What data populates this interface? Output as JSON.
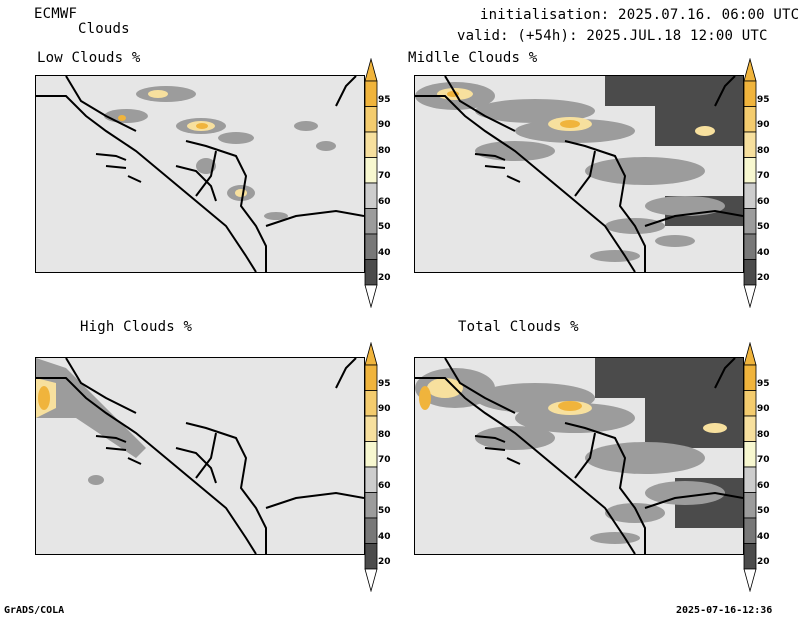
{
  "header": {
    "model": "ECMWF",
    "product": "Clouds",
    "initialisation": "initialisation: 2025.07.16. 06:00 UTC",
    "valid": "valid: (+54h): 2025.JUL.18 12:00 UTC"
  },
  "panels": [
    {
      "title": "Low Clouds %"
    },
    {
      "title": "Midlle Clouds %"
    },
    {
      "title": "High Clouds %"
    },
    {
      "title": "Total Clouds %"
    }
  ],
  "colorbar": {
    "ticks": [
      "95",
      "90",
      "80",
      "70",
      "60",
      "50",
      "40",
      "20"
    ],
    "colors": [
      "#f0b43c",
      "#f4cc6e",
      "#f7e09e",
      "#f8f8d0",
      "#cdcdcd",
      "#9c9c9c",
      "#787878",
      "#4b4b4b"
    ]
  },
  "footer": {
    "software": "GrADS/COLA",
    "timestamp": "2025-07-16-12:36"
  }
}
